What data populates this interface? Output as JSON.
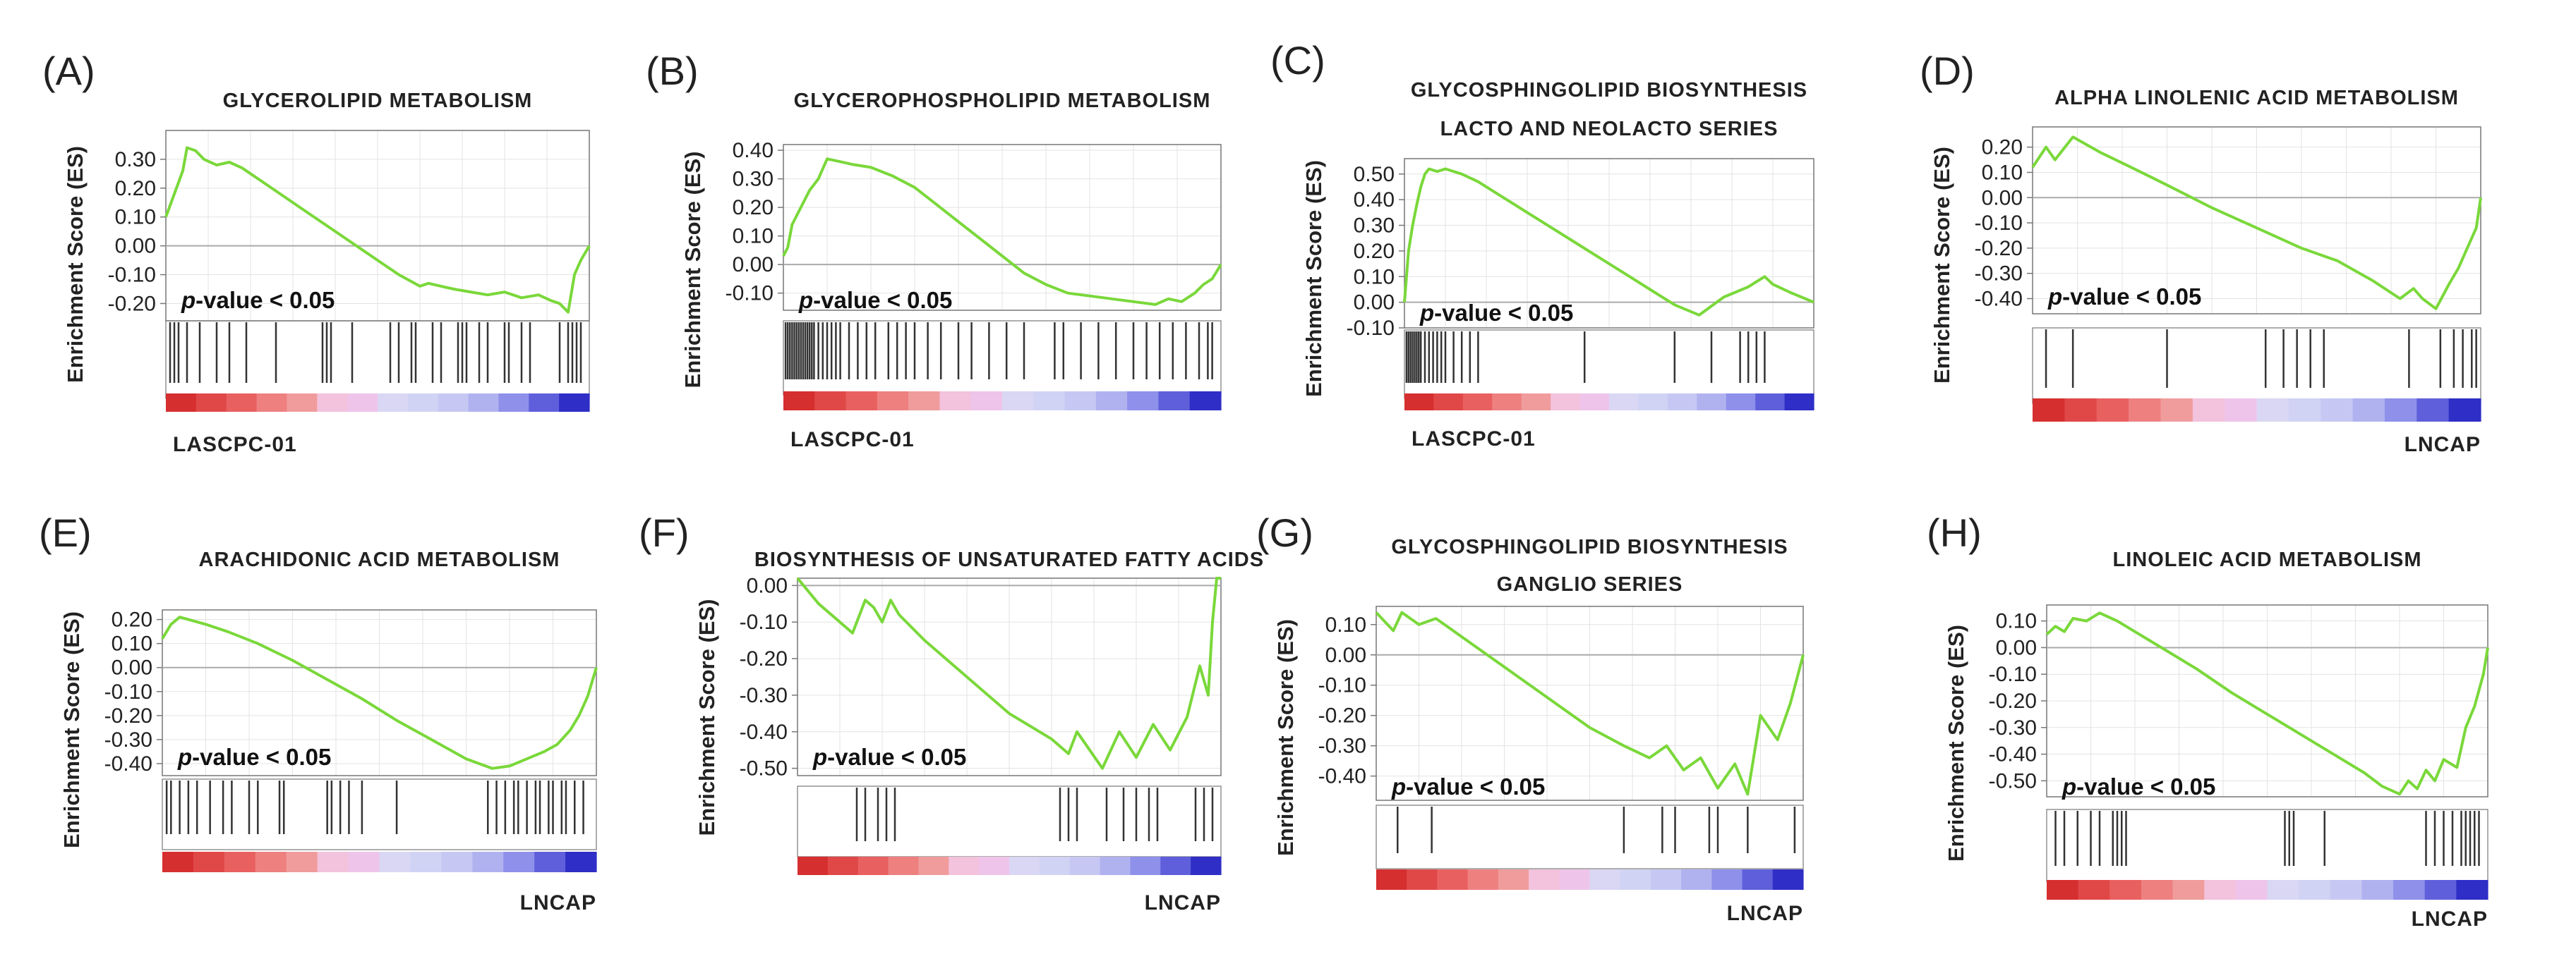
{
  "figure": {
    "colors": {
      "curve": "#7ad83a",
      "grid": "#e3e3e3",
      "axis": "#777777",
      "zero_line": "#aaaaaa",
      "hit": "#333333",
      "heatmap": [
        "#d62f2f",
        "#e04848",
        "#e96060",
        "#ee8080",
        "#f09c9c",
        "#f3c2dc",
        "#efc4ea",
        "#d9d7f4",
        "#d1d3f4",
        "#c6c8f3",
        "#b0b2f0",
        "#8e90ea",
        "#5f5fdb",
        "#2f2ec6"
      ]
    }
  },
  "chart_data": [
    {
      "panel": "(A)",
      "type": "line",
      "title": [
        "GLYCEROLIPID METABOLISM"
      ],
      "ylabel": "Enrichment Score (ES)",
      "xlabel": "",
      "yticks": [
        "0.30",
        "0.20",
        "0.10",
        "0.00",
        "-0.10",
        "-0.20"
      ],
      "ylim": [
        -0.26,
        0.4
      ],
      "pvalue_p": "p",
      "pvalue_rest": "-value < 0.05",
      "phenotype": "LASCPC-01",
      "phenotype_side": "left",
      "x": [
        0,
        0.02,
        0.04,
        0.05,
        0.07,
        0.09,
        0.12,
        0.15,
        0.18,
        0.22,
        0.26,
        0.32,
        0.38,
        0.45,
        0.5,
        0.55,
        0.6,
        0.62,
        0.68,
        0.72,
        0.76,
        0.8,
        0.84,
        0.88,
        0.91,
        0.93,
        0.95,
        0.965,
        0.98,
        1.0
      ],
      "es": [
        0.1,
        0.18,
        0.26,
        0.34,
        0.33,
        0.3,
        0.28,
        0.29,
        0.27,
        0.23,
        0.19,
        0.13,
        0.07,
        0.0,
        -0.05,
        -0.1,
        -0.14,
        -0.13,
        -0.15,
        -0.16,
        -0.17,
        -0.16,
        -0.18,
        -0.17,
        -0.19,
        -0.2,
        -0.23,
        -0.1,
        -0.05,
        0.0
      ],
      "hits": [
        0.01,
        0.02,
        0.03,
        0.05,
        0.08,
        0.12,
        0.15,
        0.19,
        0.26,
        0.37,
        0.38,
        0.39,
        0.44,
        0.53,
        0.55,
        0.58,
        0.59,
        0.63,
        0.65,
        0.69,
        0.7,
        0.71,
        0.74,
        0.76,
        0.8,
        0.81,
        0.84,
        0.86,
        0.93,
        0.95,
        0.96,
        0.97,
        0.98
      ]
    },
    {
      "panel": "(B)",
      "type": "line",
      "title": [
        "GLYCEROPHOSPHOLIPID METABOLISM"
      ],
      "ylabel": "Enrichment Score (ES)",
      "xlabel": "",
      "yticks": [
        "0.40",
        "0.30",
        "0.20",
        "0.10",
        "0.00",
        "-0.10"
      ],
      "ylim": [
        -0.16,
        0.42
      ],
      "pvalue_p": "p",
      "pvalue_rest": "-value < 0.05",
      "phenotype": "LASCPC-01",
      "phenotype_side": "left",
      "x": [
        0,
        0.01,
        0.02,
        0.04,
        0.06,
        0.08,
        0.1,
        0.13,
        0.16,
        0.2,
        0.25,
        0.3,
        0.35,
        0.4,
        0.45,
        0.5,
        0.55,
        0.6,
        0.65,
        0.7,
        0.75,
        0.8,
        0.85,
        0.88,
        0.91,
        0.94,
        0.96,
        0.98,
        1.0
      ],
      "es": [
        0.03,
        0.06,
        0.14,
        0.2,
        0.26,
        0.3,
        0.37,
        0.36,
        0.35,
        0.34,
        0.31,
        0.27,
        0.21,
        0.15,
        0.09,
        0.03,
        -0.03,
        -0.07,
        -0.1,
        -0.11,
        -0.12,
        -0.13,
        -0.14,
        -0.12,
        -0.13,
        -0.1,
        -0.07,
        -0.05,
        0.0
      ],
      "hits": [
        0.005,
        0.01,
        0.015,
        0.02,
        0.025,
        0.03,
        0.035,
        0.04,
        0.045,
        0.05,
        0.055,
        0.06,
        0.065,
        0.07,
        0.08,
        0.09,
        0.1,
        0.11,
        0.12,
        0.13,
        0.15,
        0.17,
        0.19,
        0.21,
        0.24,
        0.26,
        0.28,
        0.3,
        0.33,
        0.36,
        0.4,
        0.43,
        0.47,
        0.51,
        0.55,
        0.62,
        0.64,
        0.68,
        0.72,
        0.76,
        0.8,
        0.83,
        0.86,
        0.89,
        0.92,
        0.95,
        0.97,
        0.98
      ]
    },
    {
      "panel": "(C)",
      "type": "line",
      "title": [
        "GLYCOSPHINGOLIPID BIOSYNTHESIS",
        "LACTO AND NEOLACTO SERIES"
      ],
      "ylabel": "Enrichment Score (ES)",
      "xlabel": "",
      "yticks": [
        "0.50",
        "0.40",
        "0.30",
        "0.20",
        "0.10",
        "0.00",
        "-0.10"
      ],
      "ylim": [
        -0.1,
        0.56
      ],
      "pvalue_p": "p",
      "pvalue_rest": "-value < 0.05",
      "phenotype": "LASCPC-01",
      "phenotype_side": "left",
      "x": [
        0,
        0.01,
        0.02,
        0.03,
        0.04,
        0.05,
        0.06,
        0.08,
        0.1,
        0.14,
        0.18,
        0.22,
        0.26,
        0.3,
        0.36,
        0.42,
        0.48,
        0.54,
        0.6,
        0.66,
        0.72,
        0.78,
        0.81,
        0.84,
        0.86,
        0.88,
        0.9,
        0.94,
        0.97,
        1.0
      ],
      "es": [
        0.0,
        0.2,
        0.3,
        0.38,
        0.45,
        0.5,
        0.52,
        0.51,
        0.52,
        0.5,
        0.47,
        0.43,
        0.39,
        0.35,
        0.29,
        0.23,
        0.17,
        0.11,
        0.05,
        -0.01,
        -0.05,
        0.02,
        0.04,
        0.06,
        0.08,
        0.1,
        0.07,
        0.04,
        0.02,
        0.0
      ],
      "hits": [
        0.005,
        0.01,
        0.015,
        0.02,
        0.025,
        0.03,
        0.035,
        0.04,
        0.05,
        0.06,
        0.07,
        0.08,
        0.09,
        0.1,
        0.12,
        0.14,
        0.16,
        0.18,
        0.44,
        0.66,
        0.75,
        0.82,
        0.84,
        0.86,
        0.88
      ]
    },
    {
      "panel": "(D)",
      "type": "line",
      "title": [
        "ALPHA LINOLENIC ACID METABOLISM"
      ],
      "ylabel": "Enrichment Score (ES)",
      "xlabel": "",
      "yticks": [
        "0.20",
        "0.10",
        "0.00",
        "-0.10",
        "-0.20",
        "-0.30",
        "-0.40"
      ],
      "ylim": [
        -0.46,
        0.28
      ],
      "pvalue_p": "p",
      "pvalue_rest": "-value < 0.05",
      "phenotype": "LNCAP",
      "phenotype_side": "right",
      "x": [
        0,
        0.03,
        0.05,
        0.09,
        0.15,
        0.22,
        0.3,
        0.4,
        0.5,
        0.6,
        0.68,
        0.76,
        0.82,
        0.85,
        0.87,
        0.9,
        0.93,
        0.95,
        0.97,
        0.99,
        1.0
      ],
      "es": [
        0.12,
        0.2,
        0.15,
        0.24,
        0.18,
        0.12,
        0.05,
        -0.04,
        -0.12,
        -0.2,
        -0.25,
        -0.33,
        -0.4,
        -0.36,
        -0.4,
        -0.44,
        -0.34,
        -0.28,
        -0.2,
        -0.12,
        0.0
      ],
      "hits": [
        0.03,
        0.09,
        0.3,
        0.52,
        0.56,
        0.59,
        0.62,
        0.65,
        0.84,
        0.91,
        0.94,
        0.96,
        0.98,
        0.99
      ]
    },
    {
      "panel": "(E)",
      "type": "line",
      "title": [
        "ARACHIDONIC ACID METABOLISM"
      ],
      "ylabel": "Enrichment Score (ES)",
      "xlabel": "",
      "yticks": [
        "0.20",
        "0.10",
        "0.00",
        "-0.10",
        "-0.20",
        "-0.30",
        "-0.40"
      ],
      "ylim": [
        -0.45,
        0.24
      ],
      "pvalue_p": "p",
      "pvalue_rest": "-value < 0.05",
      "phenotype": "LNCAP",
      "phenotype_side": "right",
      "x": [
        0,
        0.02,
        0.04,
        0.06,
        0.1,
        0.15,
        0.22,
        0.3,
        0.38,
        0.46,
        0.54,
        0.62,
        0.7,
        0.76,
        0.8,
        0.84,
        0.88,
        0.91,
        0.94,
        0.96,
        0.98,
        1.0
      ],
      "es": [
        0.12,
        0.18,
        0.21,
        0.2,
        0.18,
        0.15,
        0.1,
        0.03,
        -0.05,
        -0.13,
        -0.22,
        -0.3,
        -0.38,
        -0.42,
        -0.41,
        -0.38,
        -0.35,
        -0.32,
        -0.26,
        -0.2,
        -0.12,
        0.0
      ],
      "hits": [
        0.01,
        0.02,
        0.04,
        0.06,
        0.08,
        0.11,
        0.14,
        0.16,
        0.2,
        0.22,
        0.27,
        0.28,
        0.38,
        0.39,
        0.41,
        0.43,
        0.46,
        0.54,
        0.75,
        0.77,
        0.79,
        0.81,
        0.82,
        0.84,
        0.86,
        0.87,
        0.89,
        0.9,
        0.92,
        0.93,
        0.95,
        0.97
      ]
    },
    {
      "panel": "(F)",
      "type": "line",
      "title": [
        "BIOSYNTHESIS OF UNSATURATED FATTY ACIDS"
      ],
      "ylabel": "Enrichment Score (ES)",
      "xlabel": "",
      "yticks": [
        "0.00",
        "-0.10",
        "-0.20",
        "-0.30",
        "-0.40",
        "-0.50"
      ],
      "ylim": [
        -0.52,
        0.02
      ],
      "pvalue_p": "p",
      "pvalue_rest": "-value < 0.05",
      "phenotype": "LNCAP",
      "phenotype_side": "right",
      "x": [
        0,
        0.05,
        0.1,
        0.13,
        0.16,
        0.18,
        0.2,
        0.22,
        0.24,
        0.3,
        0.4,
        0.5,
        0.6,
        0.64,
        0.66,
        0.72,
        0.76,
        0.8,
        0.84,
        0.88,
        0.92,
        0.95,
        0.97,
        0.98,
        0.99,
        1.0
      ],
      "es": [
        0.02,
        -0.05,
        -0.1,
        -0.13,
        -0.04,
        -0.06,
        -0.1,
        -0.04,
        -0.08,
        -0.15,
        -0.25,
        -0.35,
        -0.42,
        -0.46,
        -0.4,
        -0.5,
        -0.4,
        -0.47,
        -0.38,
        -0.45,
        -0.36,
        -0.22,
        -0.3,
        -0.1,
        0.02,
        0.02
      ],
      "hits": [
        0.14,
        0.16,
        0.19,
        0.21,
        0.23,
        0.62,
        0.64,
        0.66,
        0.73,
        0.77,
        0.8,
        0.83,
        0.85,
        0.94,
        0.96,
        0.98
      ]
    },
    {
      "panel": "(G)",
      "type": "line",
      "title": [
        "GLYCOSPHINGOLIPID BIOSYNTHESIS",
        "GANGLIO SERIES"
      ],
      "ylabel": "Enrichment Score (ES)",
      "xlabel": "",
      "yticks": [
        "0.10",
        "0.00",
        "-0.10",
        "-0.20",
        "-0.30",
        "-0.40"
      ],
      "ylim": [
        -0.48,
        0.16
      ],
      "pvalue_p": "p",
      "pvalue_rest": "-value < 0.05",
      "phenotype": "LNCAP",
      "phenotype_side": "right",
      "x": [
        0,
        0.04,
        0.06,
        0.1,
        0.14,
        0.2,
        0.3,
        0.4,
        0.5,
        0.58,
        0.64,
        0.68,
        0.72,
        0.76,
        0.8,
        0.84,
        0.87,
        0.9,
        0.94,
        0.97,
        1.0
      ],
      "es": [
        0.14,
        0.08,
        0.14,
        0.1,
        0.12,
        0.06,
        -0.04,
        -0.14,
        -0.24,
        -0.3,
        -0.34,
        -0.3,
        -0.38,
        -0.34,
        -0.44,
        -0.36,
        -0.46,
        -0.2,
        -0.28,
        -0.16,
        0.0
      ],
      "hits": [
        0.05,
        0.13,
        0.58,
        0.67,
        0.7,
        0.78,
        0.8,
        0.87,
        0.98
      ]
    },
    {
      "panel": "(H)",
      "type": "line",
      "title": [
        "LINOLEIC ACID METABOLISM"
      ],
      "ylabel": "Enrichment Score (ES)",
      "xlabel": "",
      "yticks": [
        "0.10",
        "0.00",
        "-0.10",
        "-0.20",
        "-0.30",
        "-0.40",
        "-0.50"
      ],
      "ylim": [
        -0.56,
        0.16
      ],
      "pvalue_p": "p",
      "pvalue_rest": "-value < 0.05",
      "phenotype": "LNCAP",
      "phenotype_side": "right",
      "x": [
        0,
        0.02,
        0.04,
        0.06,
        0.09,
        0.12,
        0.16,
        0.2,
        0.26,
        0.34,
        0.42,
        0.5,
        0.58,
        0.66,
        0.72,
        0.76,
        0.8,
        0.82,
        0.84,
        0.86,
        0.88,
        0.9,
        0.93,
        0.95,
        0.97,
        0.99,
        1.0
      ],
      "es": [
        0.05,
        0.08,
        0.06,
        0.11,
        0.1,
        0.13,
        0.1,
        0.06,
        0.0,
        -0.08,
        -0.17,
        -0.25,
        -0.33,
        -0.41,
        -0.47,
        -0.52,
        -0.55,
        -0.5,
        -0.53,
        -0.46,
        -0.5,
        -0.42,
        -0.45,
        -0.3,
        -0.22,
        -0.1,
        0.0
      ],
      "hits": [
        0.02,
        0.04,
        0.07,
        0.1,
        0.12,
        0.15,
        0.16,
        0.17,
        0.18,
        0.54,
        0.55,
        0.56,
        0.63,
        0.86,
        0.88,
        0.9,
        0.92,
        0.94,
        0.95,
        0.96,
        0.97,
        0.98
      ]
    }
  ]
}
